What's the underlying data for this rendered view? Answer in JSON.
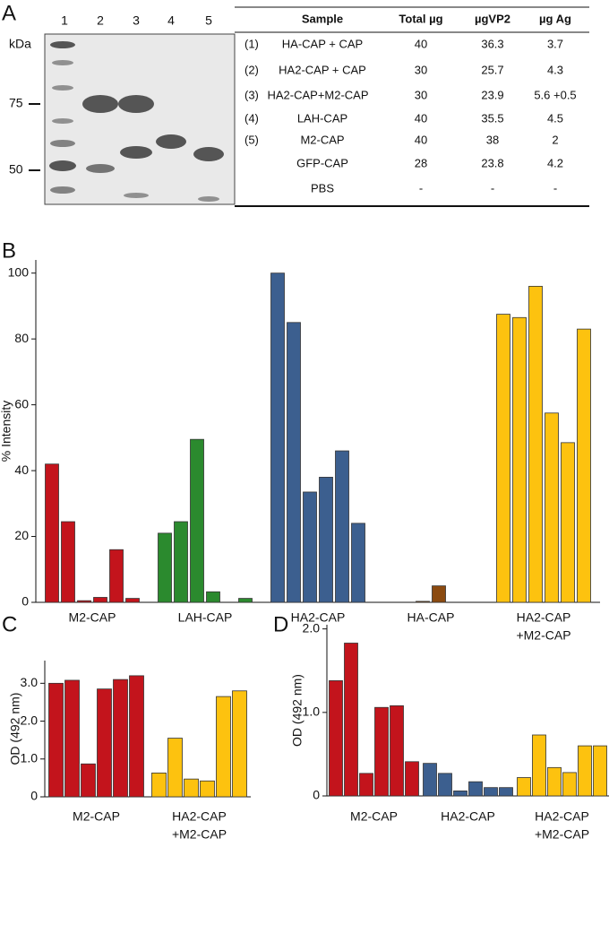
{
  "panels": [
    "A",
    "B",
    "C",
    "D"
  ],
  "gel": {
    "lanes": [
      "1",
      "2",
      "3",
      "4",
      "5"
    ],
    "unit": "kDa",
    "markers": [
      "75",
      "50"
    ]
  },
  "table": {
    "header": [
      "Sample",
      "Total µg",
      "µgVP2",
      "µg Ag"
    ],
    "rows": [
      {
        "num": "(1)",
        "sample": "HA-CAP + CAP",
        "total": "40",
        "vp2": "36.3",
        "ag": "3.7"
      },
      {
        "num": "(2)",
        "sample": "HA2-CAP + CAP",
        "total": "30",
        "vp2": "25.7",
        "ag": "4.3"
      },
      {
        "num": "(3)",
        "sample": "HA2-CAP+M2-CAP",
        "total": "30",
        "vp2": "23.9",
        "ag": "5.6 +0.5"
      },
      {
        "num": "(4)",
        "sample": "LAH-CAP",
        "total": "40",
        "vp2": "35.5",
        "ag": "4.5"
      },
      {
        "num": "(5)",
        "sample": "M2-CAP",
        "total": "40",
        "vp2": "38",
        "ag": "2"
      },
      {
        "sample": "GFP-CAP",
        "total": "28",
        "vp2": "23.8",
        "ag": "4.2"
      },
      {
        "sample": "PBS",
        "total": "-",
        "vp2": "-",
        "ag": "-"
      }
    ]
  },
  "chart_data": [
    {
      "type": "grouped_bar",
      "ylabel": "% Intensity",
      "ylim": [
        0,
        104
      ],
      "yticks": [
        0,
        20,
        40,
        60,
        80,
        100
      ],
      "groups": [
        {
          "label_lines": [
            "M2-CAP"
          ],
          "color": "#c3141c",
          "values": [
            42,
            24.5,
            0.5,
            1.5,
            16,
            1.2
          ]
        },
        {
          "label_lines": [
            "LAH-CAP"
          ],
          "color": "#2b8a2e",
          "values": [
            21,
            24.5,
            49.5,
            3.2,
            0,
            1.2
          ]
        },
        {
          "label_lines": [
            "HA2-CAP"
          ],
          "color": "#3c5f8f",
          "values": [
            100,
            85,
            33.5,
            38,
            46,
            24
          ]
        },
        {
          "label_lines": [
            "HA-CAP"
          ],
          "color": "#8b4a10",
          "values": [
            0,
            0,
            0.3,
            5,
            0,
            0
          ]
        },
        {
          "label_lines": [
            "HA2-CAP",
            "+M2-CAP"
          ],
          "color": "#fdc20f",
          "values": [
            87.5,
            86.5,
            96,
            57.5,
            48.5,
            83
          ]
        }
      ]
    },
    {
      "type": "grouped_bar",
      "ylabel": "OD (492 nm)",
      "ylim": [
        0,
        3.6
      ],
      "yticks": [
        0,
        {
          "value": 1,
          "label": "1.0"
        },
        {
          "value": 2,
          "label": "2.0"
        },
        {
          "value": 3,
          "label": "3.0"
        }
      ],
      "groups": [
        {
          "label_lines": [
            "M2-CAP"
          ],
          "color": "#c3141c",
          "values": [
            3.0,
            3.08,
            0.87,
            2.85,
            3.1,
            3.2
          ]
        },
        {
          "label_lines": [
            "HA2-CAP",
            "+M2-CAP"
          ],
          "color": "#fdc20f",
          "values": [
            0.63,
            1.55,
            0.47,
            0.42,
            2.65,
            2.8
          ]
        }
      ]
    },
    {
      "type": "grouped_bar",
      "ylabel": "OD (492 nm)",
      "ylim": [
        0,
        2.05
      ],
      "yticks": [
        0,
        {
          "value": 1,
          "label": "1.0"
        },
        {
          "value": 2,
          "label": "2.0"
        }
      ],
      "groups": [
        {
          "label_lines": [
            "M2-CAP"
          ],
          "color": "#c3141c",
          "values": [
            1.38,
            1.83,
            0.27,
            1.06,
            1.08,
            0.41
          ]
        },
        {
          "label_lines": [
            "HA2-CAP"
          ],
          "color": "#3c5f8f",
          "values": [
            0.39,
            0.27,
            0.06,
            0.17,
            0.1,
            0.1
          ]
        },
        {
          "label_lines": [
            "HA2-CAP",
            "+M2-CAP"
          ],
          "color": "#fdc20f",
          "values": [
            0.22,
            0.73,
            0.34,
            0.28,
            0.6,
            0.6
          ]
        }
      ]
    }
  ]
}
